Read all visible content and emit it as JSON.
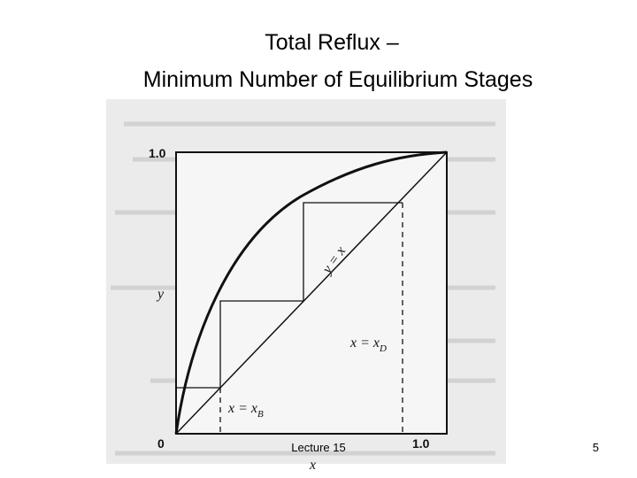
{
  "header": {
    "title": [
      "Total Reflux –",
      "Minimum Number of Equilibrium Stages"
    ]
  },
  "figure": {
    "y_top_label": "1.0",
    "y_axis_label": "y",
    "origin_label": "0",
    "x_right_label": "1.0",
    "x_axis_label": "x",
    "diagonal_label": "y = x",
    "distillate_label": {
      "text": "x = x",
      "sub": "D"
    },
    "bottoms_label": {
      "text": "x = x",
      "sub": "B"
    }
  },
  "footer": {
    "lecture": "Lecture 15",
    "page": "5"
  }
}
